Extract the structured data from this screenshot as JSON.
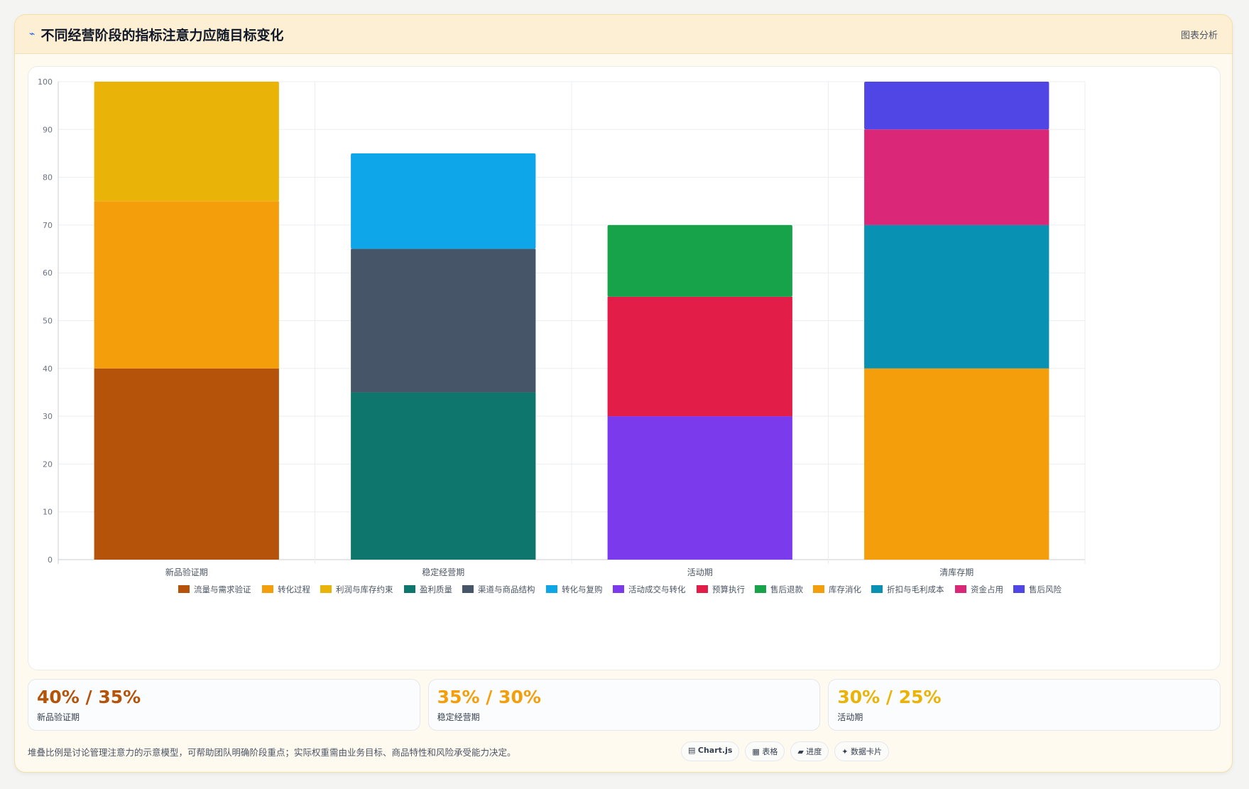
{
  "header": {
    "icon": "⌁",
    "title": "不同经营阶段的指标注意力应随目标变化",
    "tag": "图表分析"
  },
  "chart_data": {
    "type": "bar",
    "stacked": true,
    "categories": [
      "新品验证期",
      "稳定经营期",
      "活动期",
      "清库存期"
    ],
    "ylim": [
      0,
      100
    ],
    "yticks": [
      0,
      10,
      20,
      30,
      40,
      50,
      60,
      70,
      80,
      90,
      100
    ],
    "grid": true,
    "legend_position": "bottom",
    "series": [
      {
        "name": "流量与需求验证",
        "color": "#b45309",
        "values": [
          40,
          null,
          null,
          null
        ]
      },
      {
        "name": "转化过程",
        "color": "#f59e0b",
        "values": [
          35,
          null,
          null,
          null
        ]
      },
      {
        "name": "利润与库存约束",
        "color": "#eab308",
        "values": [
          25,
          null,
          null,
          null
        ]
      },
      {
        "name": "盈利质量",
        "color": "#0f766e",
        "values": [
          null,
          35,
          null,
          null
        ]
      },
      {
        "name": "渠道与商品结构",
        "color": "#475569",
        "values": [
          null,
          30,
          null,
          null
        ]
      },
      {
        "name": "转化与复购",
        "color": "#0ea5e9",
        "values": [
          null,
          20,
          null,
          null
        ]
      },
      {
        "name": "活动成交与转化",
        "color": "#7c3aed",
        "values": [
          null,
          null,
          30,
          null
        ]
      },
      {
        "name": "预算执行",
        "color": "#e11d48",
        "values": [
          null,
          null,
          25,
          null
        ]
      },
      {
        "name": "售后退款",
        "color": "#16a34a",
        "values": [
          null,
          null,
          15,
          null
        ]
      },
      {
        "name": "库存消化",
        "color": "#f59e0b",
        "values": [
          null,
          null,
          null,
          40
        ]
      },
      {
        "name": "折扣与毛利成本",
        "color": "#0891b2",
        "values": [
          null,
          null,
          null,
          30
        ]
      },
      {
        "name": "资金占用",
        "color": "#db2777",
        "values": [
          null,
          null,
          null,
          20
        ]
      },
      {
        "name": "售后风险",
        "color": "#4f46e5",
        "values": [
          null,
          null,
          null,
          10
        ]
      }
    ]
  },
  "stats": [
    {
      "value": "40% / 35%",
      "label": "新品验证期",
      "color": "#b45309"
    },
    {
      "value": "35% / 30%",
      "label": "稳定经营期",
      "color": "#f59e0b"
    },
    {
      "value": "30% / 25%",
      "label": "活动期",
      "color": "#eab308"
    }
  ],
  "footer": {
    "note": "堆叠比例是讨论管理注意力的示意模型，可帮助团队明确阶段重点；实际权重需由业务目标、商品特性和风险承受能力决定。",
    "chips": [
      {
        "icon": "▤",
        "label": "Chart.js"
      },
      {
        "icon": "▦",
        "label": "表格"
      },
      {
        "icon": "▰",
        "label": "进度"
      },
      {
        "icon": "✦",
        "label": "数据卡片"
      }
    ]
  }
}
